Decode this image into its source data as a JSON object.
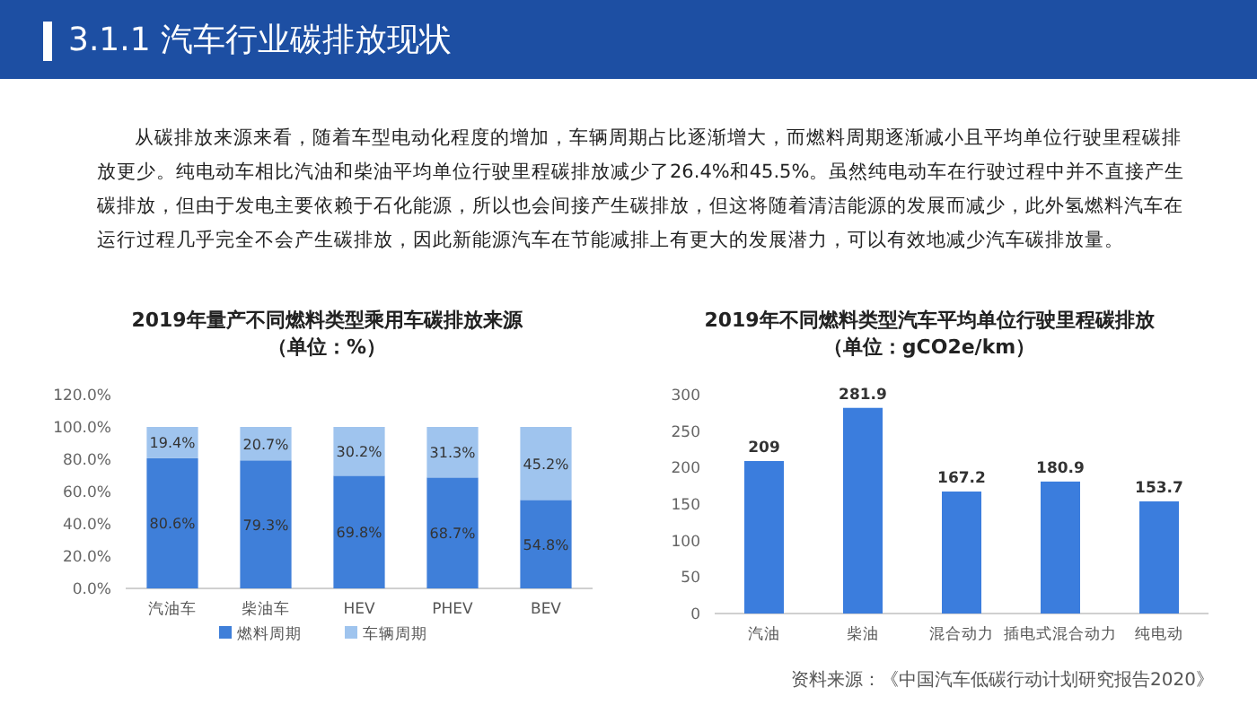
{
  "chart_data": [
    {
      "type": "other",
      "title": "3.1.1 汽车行业碳排放现状",
      "annotations": [
        "从碳排放来源来看，随着车型电动化程度的增加，车辆周期占比逐渐增大，而燃料周期逐渐减小且平均单位行驶里程碳排放更少。纯电动车相比汽油和柴油平均单位行驶里程碳排放减少了26.4%和45.5%。虽然纯电动车在行驶过程中并不直接产生碳排放，但由于发电主要依赖于石化能源，所以也会间接产生碳排放，但这将随着清洁能源的发展而减少，此外氢燃料汽车在运行过程几乎完全不会产生碳排放，因此新能源汽车在节能减排上有更大的发展潜力，可以有效地减少汽车碳排放量。",
        "资料来源：《中国汽车低碳行动计划研究报告2020》"
      ]
    },
    {
      "type": "bar",
      "title": "2019年量产不同燃料类型乘用车碳排放来源",
      "subtitle": "（单位：%）",
      "categories": [
        "汽油车",
        "柴油车",
        "HEV",
        "PHEV",
        "BEV"
      ],
      "stacked": true,
      "data_labels": true,
      "legend": "bottom",
      "grid": false,
      "series": [
        {
          "name": "燃料周期",
          "color": "#3f7fd9",
          "values": [
            80.6,
            79.3,
            69.8,
            68.7,
            54.8
          ],
          "value_labels": [
            "80.6%",
            "79.3%",
            "69.8%",
            "68.7%",
            "54.8%"
          ]
        },
        {
          "name": "车辆周期",
          "color": "#9fc4ee",
          "values": [
            19.4,
            20.7,
            30.2,
            31.3,
            45.2
          ],
          "value_labels": [
            "19.4%",
            "20.7%",
            "30.2%",
            "31.3%",
            "45.2%"
          ]
        }
      ],
      "ylim": [
        0,
        120
      ],
      "yticks": [
        {
          "value": 0,
          "label": "0.0%"
        },
        {
          "value": 20,
          "label": "20.0%"
        },
        {
          "value": 40,
          "label": "40.0%"
        },
        {
          "value": 60,
          "label": "60.0%"
        },
        {
          "value": 80,
          "label": "80.0%"
        },
        {
          "value": 100,
          "label": "100.0%"
        },
        {
          "value": 120,
          "label": "120.0%"
        }
      ]
    },
    {
      "type": "bar",
      "title": "2019年不同燃料类型汽车平均单位行驶里程碳排放",
      "subtitle": "（单位：gCO2e/km）",
      "categories": [
        "汽油",
        "柴油",
        "混合动力",
        "插电式混合动力",
        "纯电动"
      ],
      "data_labels": true,
      "grid": false,
      "series": [
        {
          "color": "#3b7ddd",
          "values": [
            209,
            281.9,
            167.2,
            180.9,
            153.7
          ]
        }
      ],
      "ylim": [
        0,
        300
      ],
      "yticks": [
        0,
        50,
        100,
        150,
        200,
        250,
        300
      ]
    }
  ]
}
